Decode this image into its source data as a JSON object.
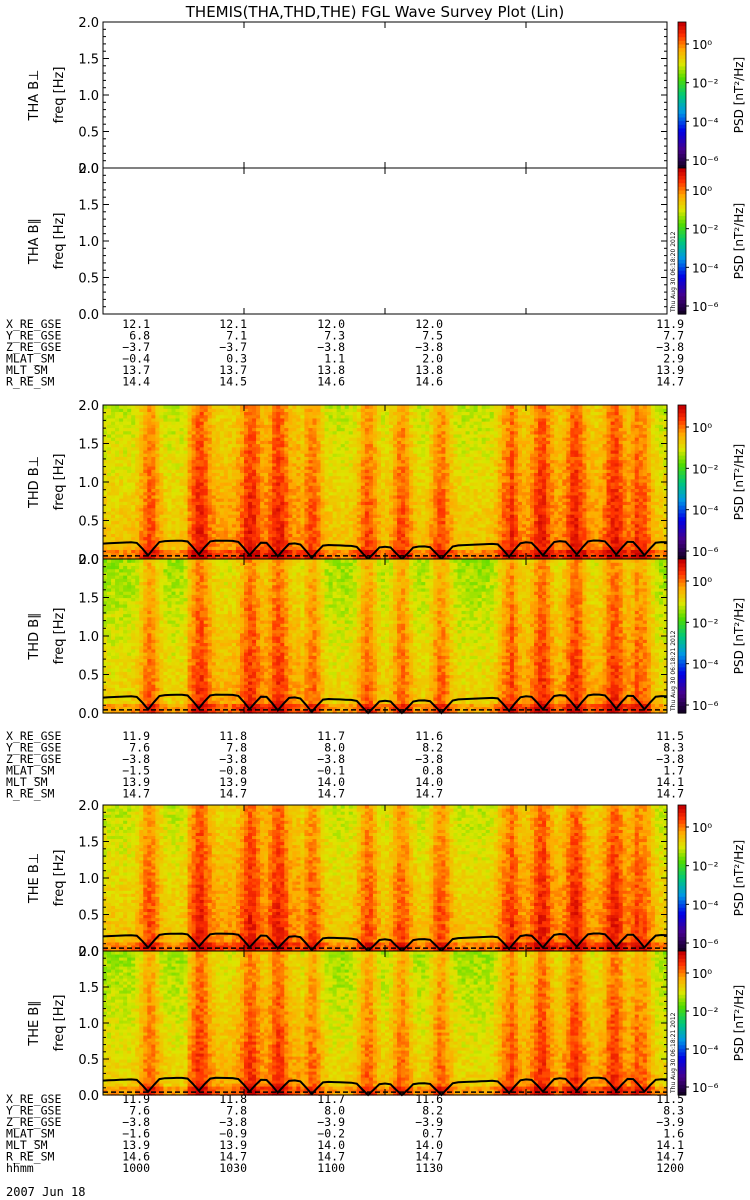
{
  "title": "THEMIS(THA,THD,THE) FGL Wave Survey Plot (Lin)",
  "colors": {
    "axis": "#000000",
    "background": "#ffffff"
  },
  "chart_data": {
    "type": "heatmap",
    "date_label": "2007 Jun 18",
    "freq_ticks": [
      "0.0",
      "0.5",
      "1.0",
      "1.5",
      "2.0"
    ],
    "freq_ylim_hz": [
      0,
      2.0
    ],
    "colorbar": {
      "label": "PSD [nT²/Hz]",
      "ticks": [
        "10⁰",
        "10⁻²",
        "10⁻⁴",
        "10⁻⁶"
      ]
    },
    "time_labels": {
      "row_label": "hhmm",
      "values": [
        "1000",
        "1030",
        "1100",
        "1130",
        "1200"
      ]
    },
    "panels": [
      {
        "id": "tha-bperp",
        "probe": "THA",
        "component": "B⊥",
        "ylabel": "freq [Hz]",
        "has_data": false,
        "stamp": ""
      },
      {
        "id": "tha-bpar",
        "probe": "THA",
        "component": "B∥",
        "ylabel": "freq [Hz]",
        "has_data": false,
        "stamp": "Thu Aug 30 06:18:20 2012"
      },
      {
        "id": "thd-bperp",
        "probe": "THD",
        "component": "B⊥",
        "ylabel": "freq [Hz]",
        "has_data": true,
        "stamp": ""
      },
      {
        "id": "thd-bpar",
        "probe": "THD",
        "component": "B∥",
        "ylabel": "freq [Hz]",
        "has_data": true,
        "stamp": "Thu Aug 30 06:18:21 2012"
      },
      {
        "id": "the-bperp",
        "probe": "THE",
        "component": "B⊥",
        "ylabel": "freq [Hz]",
        "has_data": true,
        "stamp": ""
      },
      {
        "id": "the-bpar",
        "probe": "THE",
        "component": "B∥",
        "ylabel": "freq [Hz]",
        "has_data": true,
        "stamp": "Thu Aug 30 06:18:21 2012"
      }
    ],
    "ephemeris": [
      {
        "probe": "THA",
        "rows": [
          {
            "label": "X_RE_GSE",
            "values": [
              "12.1",
              "12.1",
              "12.0",
              "12.0",
              "11.9"
            ]
          },
          {
            "label": "Y_RE_GSE",
            "values": [
              "6.8",
              "7.1",
              "7.3",
              "7.5",
              "7.7"
            ]
          },
          {
            "label": "Z_RE_GSE",
            "values": [
              "−3.7",
              "−3.7",
              "−3.8",
              "−3.8",
              "−3.8"
            ]
          },
          {
            "label": "MLAT_SM",
            "values": [
              "−0.4",
              "0.3",
              "1.1",
              "2.0",
              "2.9"
            ]
          },
          {
            "label": "MLT_SM",
            "values": [
              "13.7",
              "13.7",
              "13.8",
              "13.8",
              "13.9"
            ]
          },
          {
            "label": "R_RE_SM",
            "values": [
              "14.4",
              "14.5",
              "14.6",
              "14.6",
              "14.7"
            ]
          }
        ]
      },
      {
        "probe": "THD",
        "rows": [
          {
            "label": "X_RE_GSE",
            "values": [
              "11.9",
              "11.8",
              "11.7",
              "11.6",
              "11.5"
            ]
          },
          {
            "label": "Y_RE_GSE",
            "values": [
              "7.6",
              "7.8",
              "8.0",
              "8.2",
              "8.3"
            ]
          },
          {
            "label": "Z_RE_GSE",
            "values": [
              "−3.8",
              "−3.8",
              "−3.8",
              "−3.8",
              "−3.8"
            ]
          },
          {
            "label": "MLAT_SM",
            "values": [
              "−1.5",
              "−0.8",
              "−0.1",
              "0.8",
              "1.7"
            ]
          },
          {
            "label": "MLT_SM",
            "values": [
              "13.9",
              "13.9",
              "14.0",
              "14.0",
              "14.1"
            ]
          },
          {
            "label": "R_RE_SM",
            "values": [
              "14.7",
              "14.7",
              "14.7",
              "14.7",
              "14.7"
            ]
          }
        ]
      },
      {
        "probe": "THE",
        "rows": [
          {
            "label": "X_RE_GSE",
            "values": [
              "11.9",
              "11.8",
              "11.7",
              "11.6",
              "11.5"
            ]
          },
          {
            "label": "Y_RE_GSE",
            "values": [
              "7.6",
              "7.8",
              "8.0",
              "8.2",
              "8.3"
            ]
          },
          {
            "label": "Z_RE_GSE",
            "values": [
              "−3.8",
              "−3.8",
              "−3.9",
              "−3.9",
              "−3.9"
            ]
          },
          {
            "label": "MLAT_SM",
            "values": [
              "−1.6",
              "−0.9",
              "−0.2",
              "0.7",
              "1.6"
            ]
          },
          {
            "label": "MLT_SM",
            "values": [
              "13.9",
              "13.9",
              "14.0",
              "14.0",
              "14.1"
            ]
          },
          {
            "label": "R_RE_SM",
            "values": [
              "14.6",
              "14.7",
              "14.7",
              "14.7",
              "14.7"
            ]
          }
        ]
      }
    ]
  }
}
